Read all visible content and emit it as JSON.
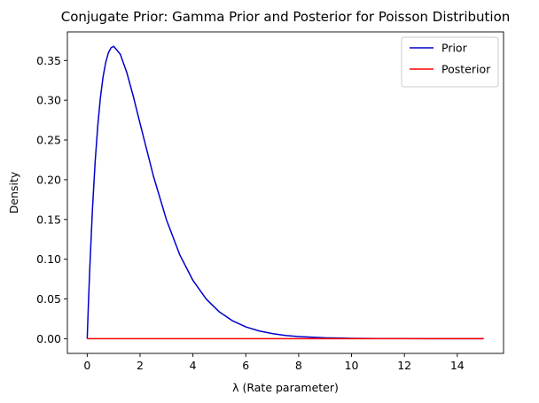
{
  "chart_data": {
    "type": "line",
    "title": "Conjugate Prior: Gamma Prior and Posterior for Poisson Distribution",
    "xlabel": "λ (Rate parameter)",
    "ylabel": "Density",
    "xlim": [
      -0.75,
      15.75
    ],
    "ylim": [
      -0.0185,
      0.386
    ],
    "xticks": [
      0,
      2,
      4,
      6,
      8,
      10,
      12,
      14
    ],
    "yticks": [
      0.0,
      0.05,
      0.1,
      0.15,
      0.2,
      0.25,
      0.3,
      0.35
    ],
    "ytick_labels": [
      "0.00",
      "0.05",
      "0.10",
      "0.15",
      "0.20",
      "0.25",
      "0.30",
      "0.35"
    ],
    "grid": false,
    "legend_position": "top-right",
    "series": [
      {
        "name": "Prior",
        "color": "#0000cc",
        "x": [
          0,
          0.05,
          0.1,
          0.2,
          0.3,
          0.4,
          0.5,
          0.6,
          0.7,
          0.8,
          0.9,
          1.0,
          1.25,
          1.5,
          1.75,
          2.0,
          2.5,
          3.0,
          3.5,
          4.0,
          4.5,
          5.0,
          5.5,
          6.0,
          6.5,
          7.0,
          7.5,
          8.0,
          9.0,
          10.0,
          11.0,
          12.0,
          13.0,
          14.0,
          15.0
        ],
        "values": [
          0.0,
          0.0476,
          0.0905,
          0.1637,
          0.2222,
          0.2681,
          0.3033,
          0.3293,
          0.3476,
          0.3595,
          0.3659,
          0.3679,
          0.358,
          0.3347,
          0.3041,
          0.2707,
          0.2052,
          0.1494,
          0.1057,
          0.0733,
          0.05,
          0.0337,
          0.0225,
          0.0149,
          0.0098,
          0.0064,
          0.0041,
          0.0027,
          0.0011,
          0.0005,
          0.0002,
          0.0001,
          0.0,
          0.0,
          0.0
        ]
      },
      {
        "name": "Posterior",
        "color": "#ff0000",
        "x": [
          0,
          15
        ],
        "values": [
          0.0,
          0.0
        ]
      }
    ]
  }
}
